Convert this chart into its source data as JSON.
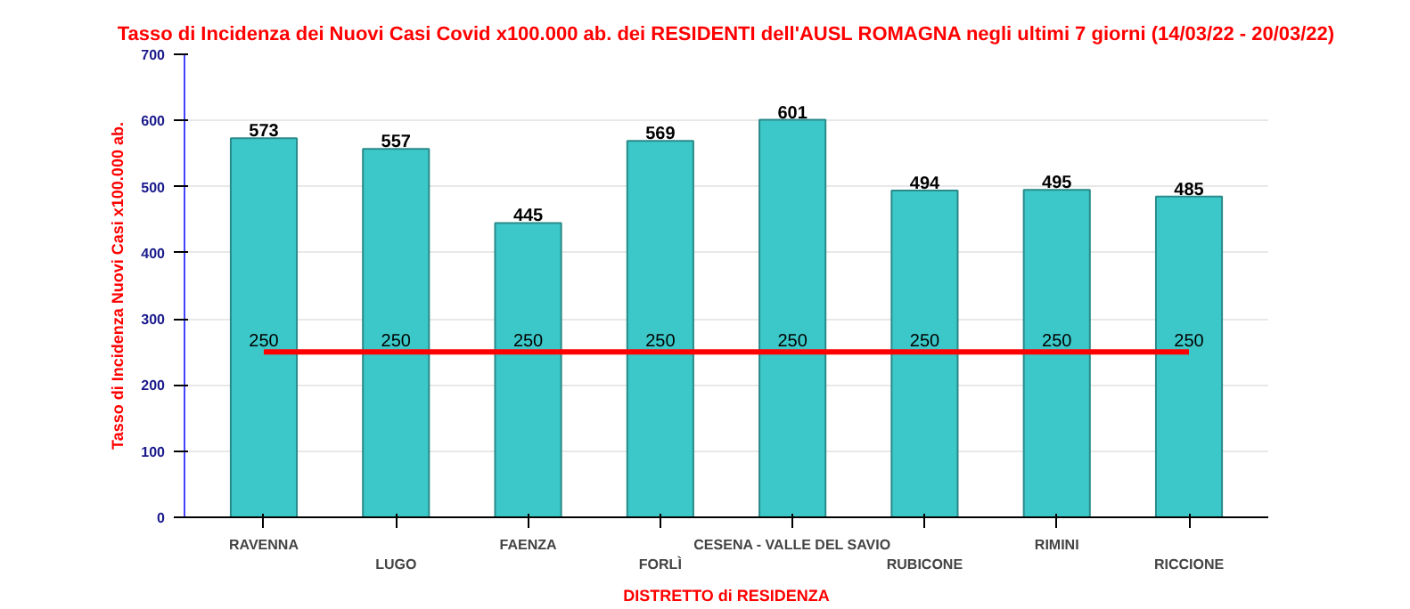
{
  "chart_data": {
    "type": "bar",
    "title": "Tasso di Incidenza dei Nuovi Casi Covid x100.000 ab. dei RESIDENTI dell'AUSL ROMAGNA negli ultimi 7 giorni (14/03/22 - 20/03/22)",
    "xlabel": "DISTRETTO di RESIDENZA",
    "ylabel": "Tasso di Incidenza Nuovi Casi x100.000 ab.",
    "categories": [
      "RAVENNA",
      "LUGO",
      "FAENZA",
      "FORLÌ",
      "CESENA - VALLE DEL SAVIO",
      "RUBICONE",
      "RIMINI",
      "RICCIONE"
    ],
    "series": [
      {
        "color": "#3cc8c8",
        "values": [
          573,
          557,
          445,
          569,
          601,
          494,
          495,
          485
        ]
      },
      {
        "type": "line",
        "color": "#ff0000",
        "values": [
          250,
          250,
          250,
          250,
          250,
          250,
          250,
          250
        ]
      }
    ],
    "ylim": [
      0,
      700
    ],
    "yticks": [
      0,
      100,
      200,
      300,
      400,
      500,
      600,
      700
    ],
    "grid": "y",
    "data_labels": true
  }
}
